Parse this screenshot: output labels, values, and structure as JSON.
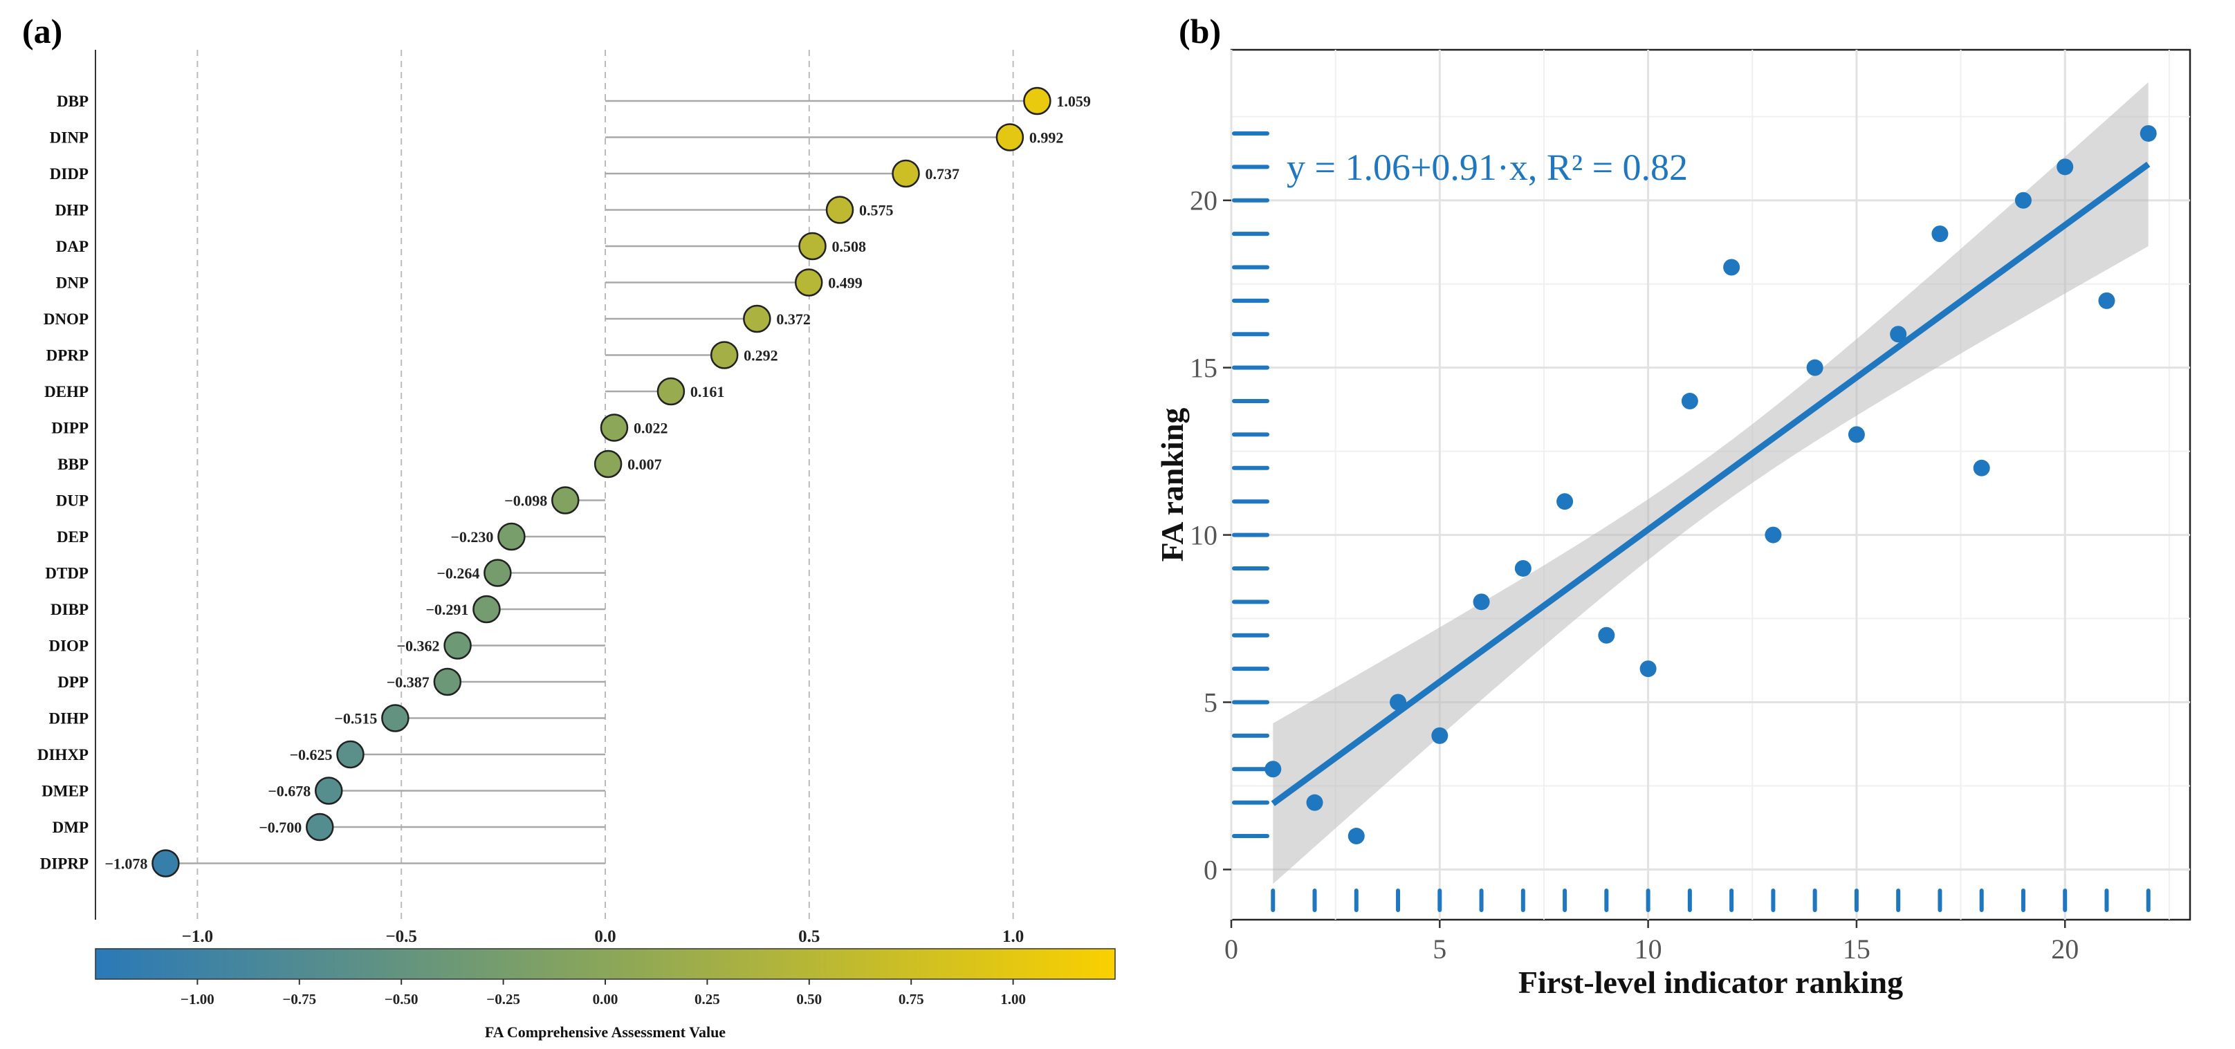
{
  "panel_a_label": "(a)",
  "panel_b_label": "(b)",
  "colorbar": {
    "title": "FA Comprehensive Assessment Value",
    "range": [
      -1.25,
      1.25
    ],
    "ticks": [
      -1.0,
      -0.75,
      -0.5,
      -0.25,
      0.0,
      0.25,
      0.5,
      0.75,
      1.0
    ],
    "tick_labels": [
      "−1.00",
      "−0.75",
      "−0.50",
      "−0.25",
      "0.00",
      "0.25",
      "0.50",
      "0.75",
      "1.00"
    ],
    "color_low": "#2a79b8",
    "color_mid": "#8aa65a",
    "color_high": "#fad000"
  },
  "chart_data": [
    {
      "type": "lollipop",
      "title": "",
      "xlabel": "",
      "xlim": [
        -1.25,
        1.25
      ],
      "xticks": [
        -1.0,
        -0.5,
        0.0,
        0.5,
        1.0
      ],
      "xtick_labels": [
        "−1.0",
        "−0.5",
        "0.0",
        "0.5",
        "1.0"
      ],
      "grid": "vertical dashed",
      "categories": [
        "DBP",
        "DINP",
        "DIDP",
        "DHP",
        "DAP",
        "DNP",
        "DNOP",
        "DPRP",
        "DEHP",
        "DIPP",
        "BBP",
        "DUP",
        "DEP",
        "DTDP",
        "DIBP",
        "DIOP",
        "DPP",
        "DIHP",
        "DIHXP",
        "DMEP",
        "DMP",
        "DIPRP"
      ],
      "values": [
        1.059,
        0.992,
        0.737,
        0.575,
        0.508,
        0.499,
        0.372,
        0.292,
        0.161,
        0.022,
        0.007,
        -0.098,
        -0.23,
        -0.264,
        -0.291,
        -0.362,
        -0.387,
        -0.515,
        -0.625,
        -0.678,
        -0.7,
        -1.078
      ],
      "value_labels": [
        "1.059",
        "0.992",
        "0.737",
        "0.575",
        "0.508",
        "0.499",
        "0.372",
        "0.292",
        "0.161",
        "0.022",
        "0.007",
        "−0.098",
        "−0.230",
        "−0.264",
        "−0.291",
        "−0.362",
        "−0.387",
        "−0.515",
        "−0.625",
        "−0.678",
        "−0.700",
        "−1.078"
      ]
    },
    {
      "type": "scatter",
      "title": "",
      "xlabel": "First-level indicator ranking",
      "ylabel": "FA ranking",
      "xlim": [
        0,
        23
      ],
      "ylim": [
        -1.5,
        24.5
      ],
      "xticks": [
        0,
        5,
        10,
        15,
        20
      ],
      "yticks": [
        0,
        5,
        10,
        15,
        20
      ],
      "points": [
        [
          1,
          3
        ],
        [
          2,
          2
        ],
        [
          3,
          1
        ],
        [
          4,
          5
        ],
        [
          5,
          4
        ],
        [
          6,
          8
        ],
        [
          7,
          9
        ],
        [
          8,
          11
        ],
        [
          9,
          7
        ],
        [
          10,
          6
        ],
        [
          11,
          14
        ],
        [
          12,
          18
        ],
        [
          13,
          10
        ],
        [
          14,
          15
        ],
        [
          15,
          13
        ],
        [
          16,
          16
        ],
        [
          17,
          19
        ],
        [
          18,
          12
        ],
        [
          19,
          20
        ],
        [
          20,
          21
        ],
        [
          21,
          17
        ],
        [
          22,
          22
        ]
      ],
      "fit": {
        "intercept": 1.06,
        "slope": 0.91,
        "r2": 0.82,
        "x_range": [
          1,
          22
        ]
      },
      "equation_label": "y = 1.06+0.91·x, R² = 0.82",
      "confidence_band": {
        "x": [
          1,
          22
        ],
        "lower": [
          -0.4,
          18.6
        ],
        "upper": [
          4.4,
          23.5
        ]
      },
      "rug_x": [
        1,
        2,
        3,
        4,
        5,
        6,
        7,
        8,
        9,
        10,
        11,
        12,
        13,
        14,
        15,
        16,
        17,
        18,
        19,
        20,
        21,
        22
      ],
      "rug_y": [
        1,
        2,
        3,
        4,
        5,
        6,
        7,
        8,
        9,
        10,
        11,
        12,
        13,
        14,
        15,
        16,
        17,
        18,
        19,
        20,
        21,
        22
      ],
      "color": "#1f77c0"
    }
  ]
}
